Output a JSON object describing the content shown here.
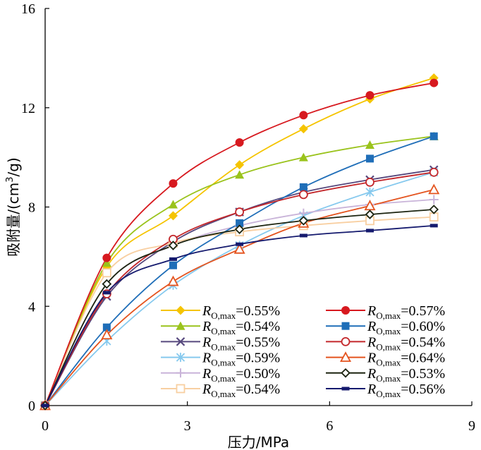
{
  "chart_data": {
    "type": "line",
    "xlabel": "压力/MPa",
    "ylabel_main": "吸附量",
    "ylabel_unit_prefix": "/(cm",
    "ylabel_unit_sup": "3",
    "ylabel_unit_suffix": "/g)",
    "xlim": [
      0,
      9
    ],
    "ylim": [
      0,
      16
    ],
    "xticks": [
      0,
      3,
      6,
      9
    ],
    "yticks": [
      0,
      4,
      8,
      12,
      16
    ],
    "grid": false,
    "legend_position": "bottom-right",
    "legend_symbol": "R",
    "legend_subscript": "O,max",
    "x": [
      0,
      1.3,
      2.7,
      4.1,
      5.45,
      6.85,
      8.2
    ],
    "series": [
      {
        "name": "=0.55%",
        "color": "#f5c400",
        "marker": "diamond-filled",
        "values": [
          0,
          5.6,
          7.65,
          9.7,
          11.15,
          12.35,
          13.2
        ]
      },
      {
        "name": "=0.54%",
        "color": "#9ac31c",
        "marker": "triangle-filled",
        "values": [
          0,
          5.75,
          8.1,
          9.3,
          10.0,
          10.5,
          10.85
        ]
      },
      {
        "name": "=0.55%",
        "color": "#57497e",
        "marker": "x",
        "values": [
          0,
          4.4,
          6.6,
          7.8,
          8.6,
          9.1,
          9.5
        ]
      },
      {
        "name": "=0.59%",
        "color": "#86c9ee",
        "marker": "asterisk",
        "values": [
          0,
          2.6,
          4.85,
          6.45,
          7.65,
          8.6,
          9.4
        ]
      },
      {
        "name": "=0.50%",
        "color": "#c9b4d9",
        "marker": "plus",
        "values": [
          0,
          4.9,
          6.45,
          7.25,
          7.75,
          8.1,
          8.3
        ]
      },
      {
        "name": "=0.54%",
        "color": "#f8cfa1",
        "marker": "square-open",
        "values": [
          0,
          5.35,
          6.55,
          7.0,
          7.25,
          7.45,
          7.6
        ]
      },
      {
        "name": "=0.57%",
        "color": "#d7191f",
        "marker": "circle-filled",
        "values": [
          0,
          5.95,
          8.95,
          10.6,
          11.7,
          12.5,
          13.0
        ]
      },
      {
        "name": "=0.60%",
        "color": "#1f6eb8",
        "marker": "square-filled",
        "values": [
          0,
          3.15,
          5.65,
          7.35,
          8.8,
          9.95,
          10.85
        ]
      },
      {
        "name": "=0.54%",
        "color": "#c3272b",
        "marker": "circle-open",
        "values": [
          0,
          4.5,
          6.7,
          7.8,
          8.5,
          9.0,
          9.4
        ]
      },
      {
        "name": "=0.64%",
        "color": "#e4541f",
        "marker": "triangle-open",
        "values": [
          0,
          2.85,
          5.0,
          6.3,
          7.35,
          8.05,
          8.7
        ]
      },
      {
        "name": "=0.53%",
        "color": "#1c2410",
        "marker": "diamond-open",
        "values": [
          0,
          4.9,
          6.45,
          7.1,
          7.45,
          7.7,
          7.9
        ]
      },
      {
        "name": "=0.56%",
        "color": "#151a6e",
        "marker": "dash",
        "values": [
          0,
          4.55,
          5.9,
          6.5,
          6.85,
          7.05,
          7.25
        ]
      }
    ]
  }
}
